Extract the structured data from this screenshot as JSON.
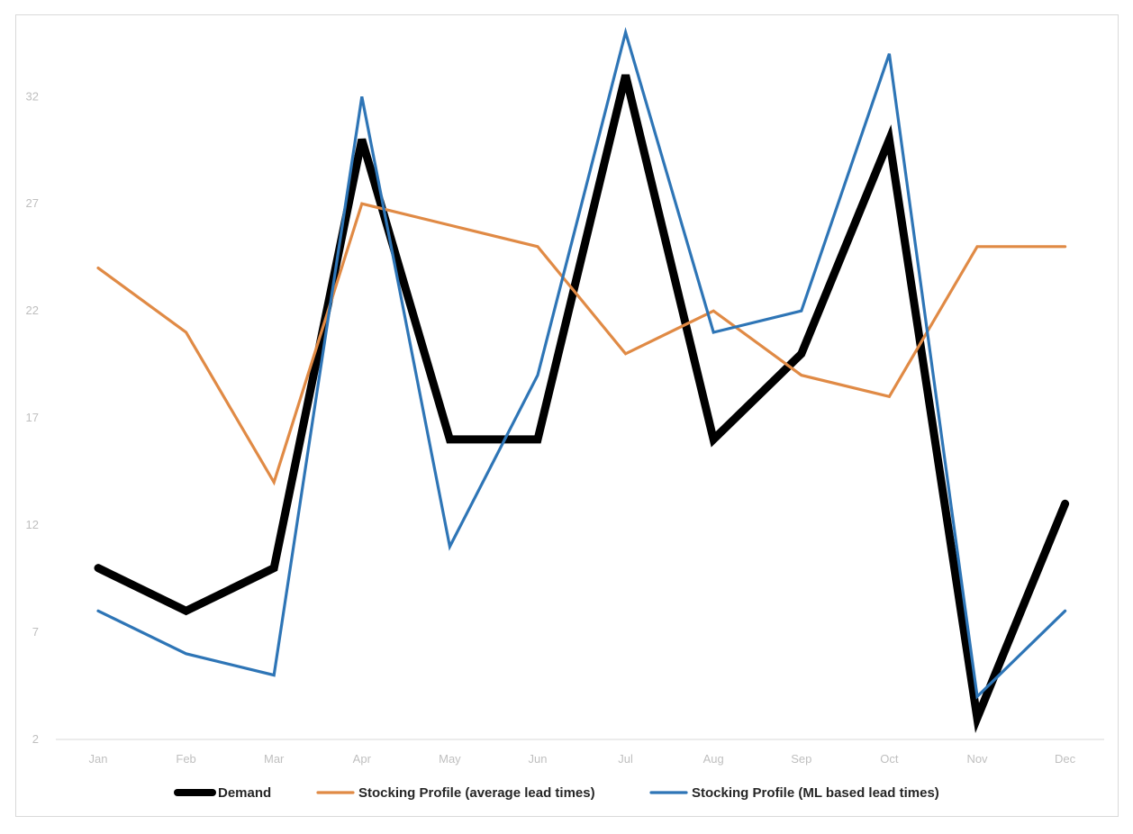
{
  "chart_data": {
    "type": "line",
    "categories": [
      "Jan",
      "Feb",
      "Mar",
      "Apr",
      "May",
      "Jun",
      "Jul",
      "Aug",
      "Sep",
      "Oct",
      "Nov",
      "Dec"
    ],
    "series": [
      {
        "name": "Demand",
        "color": "#000000",
        "values": [
          10,
          8,
          10,
          30,
          16,
          16,
          33,
          16,
          20,
          30,
          3,
          13
        ]
      },
      {
        "name": "Stocking Profile (average lead times)",
        "color": "#e08a45",
        "values": [
          24,
          21,
          14,
          27,
          26,
          25,
          20,
          22,
          19,
          18,
          25,
          25
        ]
      },
      {
        "name": "Stocking Profile (ML based lead times)",
        "color": "#2e75b6",
        "values": [
          8,
          6,
          5,
          32,
          11,
          19,
          35,
          21,
          22,
          34,
          4,
          8
        ]
      }
    ],
    "yticks": [
      2,
      7,
      12,
      17,
      22,
      27,
      32
    ],
    "ylim": [
      2,
      35.5
    ],
    "title": "",
    "xlabel": "",
    "ylabel": "",
    "grid": false,
    "legend_position": "bottom"
  }
}
